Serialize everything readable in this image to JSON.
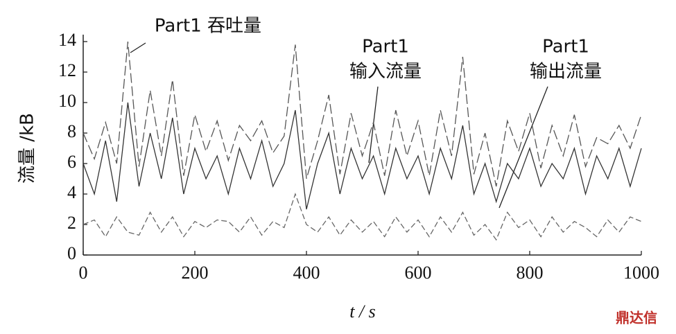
{
  "chart_data": {
    "type": "line",
    "xlabel": "t / s",
    "ylabel": "流量 /kB",
    "watermark": "鼎达信",
    "x": [
      0,
      20,
      40,
      60,
      80,
      100,
      120,
      140,
      160,
      180,
      200,
      220,
      240,
      260,
      280,
      300,
      320,
      340,
      360,
      380,
      400,
      420,
      440,
      460,
      480,
      500,
      520,
      540,
      560,
      580,
      600,
      620,
      640,
      660,
      680,
      700,
      720,
      740,
      760,
      780,
      800,
      820,
      840,
      860,
      880,
      900,
      920,
      940,
      960,
      980,
      1000
    ],
    "xlim": [
      0,
      1000
    ],
    "xticks": [
      0,
      200,
      400,
      600,
      800,
      1000
    ],
    "ylim": [
      0,
      14
    ],
    "yticks": [
      0,
      2,
      4,
      6,
      8,
      10,
      12,
      14
    ],
    "series": [
      {
        "label": [
          "Part1 吞吐量"
        ],
        "color": "#555555",
        "dash": "14,5",
        "values": [
          8,
          6.3,
          8.7,
          6,
          14,
          5.8,
          10.8,
          6.5,
          11.5,
          5.2,
          9.2,
          6.8,
          8.8,
          6.2,
          8.5,
          7.5,
          8.8,
          6.7,
          7.8,
          13.8,
          5,
          7.5,
          10.5,
          5.3,
          9.3,
          6.5,
          8.7,
          5.2,
          9.5,
          6.5,
          8.8,
          5.2,
          9.5,
          6.5,
          13,
          5.3,
          8,
          4.5,
          8.8,
          6.8,
          9.3,
          5.7,
          8.5,
          6.5,
          9.2,
          5.8,
          7.7,
          7.3,
          8.5,
          7,
          9.2
        ]
      },
      {
        "label": [
          "Part1",
          "输入流量"
        ],
        "color": "#333333",
        "dash": "none",
        "values": [
          6,
          4,
          7.5,
          3.5,
          10,
          4.5,
          8,
          5,
          9,
          4,
          7,
          5,
          6.5,
          4,
          7,
          5,
          7.5,
          4.5,
          6,
          9.5,
          3,
          6,
          8,
          4,
          7,
          5,
          6.5,
          4,
          7,
          5,
          6.5,
          4,
          7,
          5,
          8.5,
          4,
          6,
          3.5,
          6,
          5,
          7,
          4.5,
          6,
          5,
          7,
          4,
          6.5,
          5,
          7,
          4.5,
          7
        ]
      },
      {
        "label": [
          "Part1",
          "输出流量"
        ],
        "color": "#666666",
        "dash": "8,4",
        "values": [
          2,
          2.3,
          1.2,
          2.5,
          1.5,
          1.3,
          2.8,
          1.5,
          2.5,
          1.2,
          2.2,
          1.8,
          2.3,
          2.2,
          1.5,
          2.5,
          1.3,
          2.2,
          1.8,
          4,
          2,
          1.5,
          2.5,
          1.3,
          2.3,
          1.5,
          2.2,
          1.2,
          2.5,
          1.5,
          2.3,
          1.2,
          2.5,
          1.5,
          2.8,
          1.3,
          2,
          1,
          2.8,
          1.8,
          2.3,
          1.2,
          2.5,
          1.5,
          2.2,
          1.8,
          1.2,
          2.3,
          1.5,
          2.5,
          2.2
        ]
      }
    ]
  }
}
